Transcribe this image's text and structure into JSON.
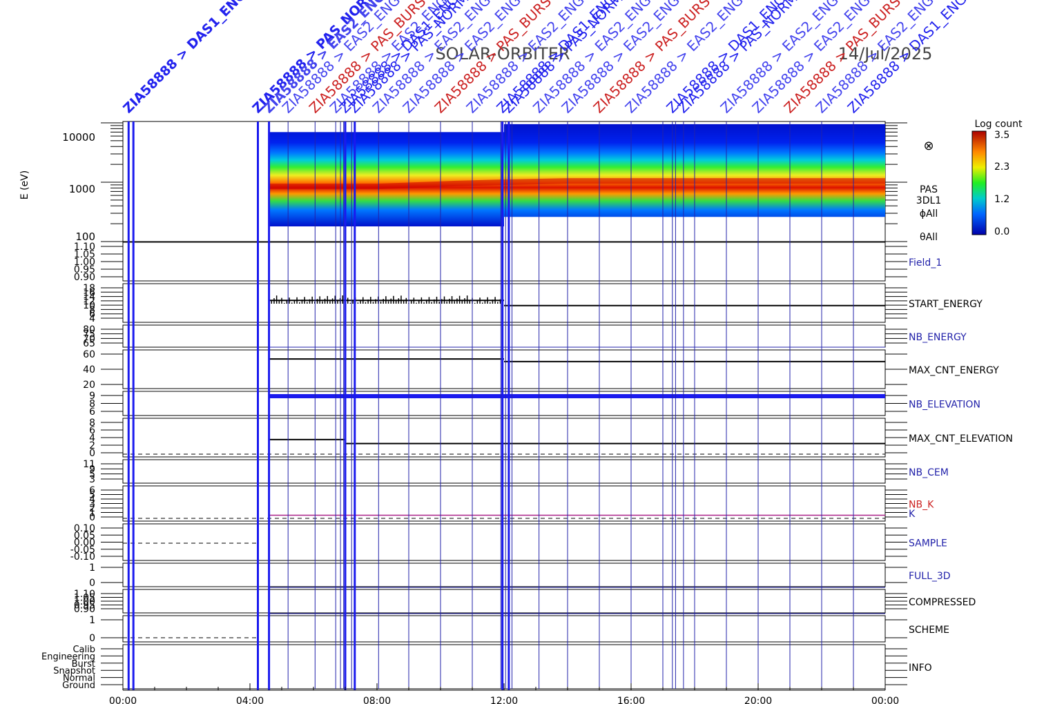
{
  "header": {
    "mission": "SOLAR-ORBITER",
    "date": "14/Jul/2025"
  },
  "time_axis": {
    "ticks": [
      "00:00",
      "04:00",
      "08:00",
      "12:00",
      "16:00",
      "20:00",
      "00:00"
    ]
  },
  "colorbar": {
    "label": "Log count",
    "ticks": [
      "3.5",
      "2.3",
      "1.2",
      "0.0"
    ]
  },
  "spectrogram": {
    "ylabel": "E (eV)",
    "yticks": [
      "10000",
      "1000",
      "100"
    ],
    "right_labels": [
      "PAS",
      "3DL1",
      "ϕAll",
      "θAll"
    ],
    "symbol": "⊗"
  },
  "panels": [
    {
      "id": "field1",
      "label": "Field_1",
      "label_color": "#2222aa",
      "ticks": [
        "1.10",
        "1.05",
        "1.00",
        "0.95",
        "0.90"
      ]
    },
    {
      "id": "start_energy",
      "label": "START_ENERGY",
      "label_color": "#000000",
      "ticks": [
        "18",
        "16",
        "14",
        "12",
        "10",
        "8",
        "6",
        "4"
      ]
    },
    {
      "id": "nb_energy",
      "label": "NB_ENERGY",
      "label_color": "#2222aa",
      "ticks": [
        "80",
        "75",
        "70",
        "65"
      ]
    },
    {
      "id": "max_cnt_energy",
      "label": "MAX_CNT_ENERGY",
      "label_color": "#000000",
      "ticks": [
        "60",
        "40",
        "20"
      ]
    },
    {
      "id": "nb_elevation",
      "label": "NB_ELEVATION",
      "label_color": "#2222aa",
      "ticks": [
        "9",
        "8",
        "6"
      ]
    },
    {
      "id": "max_cnt_elevation",
      "label": "MAX_CNT_ELEVATION",
      "label_color": "#000000",
      "ticks": [
        "8",
        "6",
        "4",
        "2",
        "0"
      ]
    },
    {
      "id": "nb_cem",
      "label": "NB_CEM",
      "label_color": "#2222aa",
      "ticks": [
        "11",
        "9",
        "5",
        "3"
      ]
    },
    {
      "id": "nb_k",
      "label": "NB_K",
      "label2": "K",
      "label_color": "#cc2222",
      "label2_color": "#2222aa",
      "ticks": [
        "6",
        "5",
        "4",
        "3",
        "2",
        "1",
        "0"
      ]
    },
    {
      "id": "sample",
      "label": "SAMPLE",
      "label_color": "#2222aa",
      "ticks": [
        "0.10",
        "0.05",
        "0.00",
        "-0.05",
        "-0.10"
      ]
    },
    {
      "id": "full_3d",
      "label": "FULL_3D",
      "label_color": "#2222aa",
      "ticks": [
        "1",
        "0"
      ]
    },
    {
      "id": "compressed",
      "label": "COMPRESSED",
      "label_color": "#000000",
      "ticks": [
        "1.10",
        "1.05",
        "1.00",
        "0.95",
        "0.90"
      ]
    },
    {
      "id": "scheme",
      "label": "SCHEME",
      "label_color": "#000000",
      "ticks": [
        "1",
        "0"
      ]
    },
    {
      "id": "info",
      "label": "INFO",
      "label_color": "#000000",
      "ticks": [
        "Calib",
        "Engineering",
        "Burst",
        "Snapshot",
        "Normal",
        "Ground"
      ]
    }
  ],
  "event_lines": {
    "thick_hours": [
      0.18,
      0.33,
      4.25,
      4.6,
      7.0,
      7.3,
      11.95,
      12.15
    ],
    "thin_hours": [
      5.2,
      6.05,
      6.7,
      6.85,
      6.95,
      7.2,
      7.3,
      8.05,
      9.0,
      10.0,
      11.0,
      11.9,
      12.05,
      12.25,
      13.1,
      14.0,
      15.0,
      16.0,
      17.0,
      17.3,
      17.4,
      17.65,
      18.0,
      19.0,
      20.0,
      21.0,
      22.0,
      23.0
    ]
  },
  "event_labels": [
    {
      "text": "ZIA58888 > DAS1_ENG",
      "color": "#2222ee"
    },
    {
      "text": "ZIA58888 > PAS_NORM",
      "color": "#2222ee"
    },
    {
      "text": "ZIA58888 > EAS2_ENG",
      "color": "#4444ee"
    },
    {
      "text": "ZIA58888 > EAS2_ENG",
      "color": "#4444ee"
    },
    {
      "text": "ZIA58888 > PAS_BURST",
      "color": "#cc2222"
    },
    {
      "text": "ZIA58888 > EAS2_ENG",
      "color": "#4444ee"
    }
  ],
  "chart_data": {
    "type": "spectrogram",
    "x_unit": "hour of day",
    "xlim": [
      0,
      24
    ],
    "data_start_hour": 4.6,
    "energy_ylim_eV": [
      100,
      10000
    ],
    "y_scale": "log",
    "colorbar_range": [
      0.0,
      3.5
    ],
    "peak_energy_eV": [
      {
        "hour": 4.6,
        "value": 850
      },
      {
        "hour": 8,
        "value": 850
      },
      {
        "hour": 10.5,
        "value": 950
      },
      {
        "hour": 12,
        "value": 1000
      },
      {
        "hour": 14,
        "value": 1050
      },
      {
        "hour": 18,
        "value": 1050
      },
      {
        "hour": 24,
        "value": 1050
      }
    ],
    "start_energy": {
      "ylim": [
        4,
        18
      ],
      "segments": [
        {
          "from": 4.6,
          "to": 12.0,
          "value": 12
        },
        {
          "from": 12.0,
          "to": 24.0,
          "value": 10
        }
      ]
    },
    "max_cnt_energy": {
      "ylim": [
        0,
        70
      ],
      "segments": [
        {
          "from": 4.6,
          "to": 12.0,
          "value": 55
        },
        {
          "from": 12.0,
          "to": 24.0,
          "value": 50
        }
      ]
    },
    "nb_elevation": {
      "ylim": [
        5,
        10
      ],
      "value": 9
    },
    "max_cnt_elevation": {
      "ylim": [
        0,
        9
      ],
      "segments": [
        {
          "from": 4.6,
          "to": 7.0,
          "value": 4
        },
        {
          "from": 7.0,
          "to": 12.0,
          "value": 3
        },
        {
          "from": 12.0,
          "to": 24.0,
          "value": 3
        }
      ]
    },
    "nb_k": {
      "ylim": [
        0,
        6
      ],
      "value": 1
    }
  }
}
